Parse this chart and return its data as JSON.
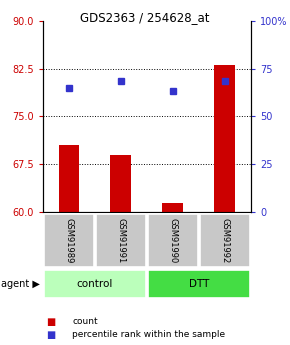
{
  "title": "GDS2363 / 254628_at",
  "samples": [
    "GSM91989",
    "GSM91991",
    "GSM91990",
    "GSM91992"
  ],
  "bar_values": [
    70.5,
    69.0,
    61.5,
    83.0
  ],
  "scatter_values": [
    79.5,
    80.5,
    79.0,
    80.5
  ],
  "ylim_left": [
    60,
    90
  ],
  "ylim_right": [
    0,
    100
  ],
  "yticks_left": [
    60,
    67.5,
    75,
    82.5,
    90
  ],
  "yticks_right": [
    0,
    25,
    50,
    75,
    100
  ],
  "ytick_labels_right": [
    "0",
    "25",
    "50",
    "75",
    "100%"
  ],
  "bar_color": "#cc0000",
  "scatter_color": "#3333cc",
  "groups": [
    {
      "label": "control",
      "indices": [
        0,
        1
      ],
      "color": "#bbffbb"
    },
    {
      "label": "DTT",
      "indices": [
        2,
        3
      ],
      "color": "#44dd44"
    }
  ],
  "legend_count_label": "count",
  "legend_pct_label": "percentile rank within the sample",
  "background_color": "#ffffff",
  "plot_bg": "#ffffff",
  "bar_baseline": 60,
  "gridlines": [
    67.5,
    75,
    82.5
  ]
}
